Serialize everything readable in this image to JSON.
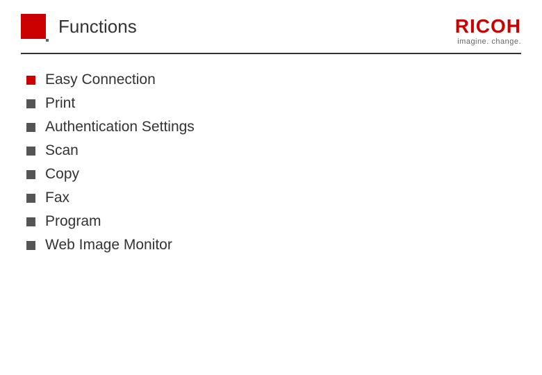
{
  "header": {
    "title": "Functions",
    "logo_text": "RICOH",
    "tagline": "imagine. change."
  },
  "functions": {
    "items": [
      {
        "label": "Easy Connection",
        "bullet_color": "#cc0000"
      },
      {
        "label": "Print",
        "bullet_color": "#555555"
      },
      {
        "label": "Authentication Settings",
        "bullet_color": "#555555"
      },
      {
        "label": "Scan",
        "bullet_color": "#555555"
      },
      {
        "label": "Copy",
        "bullet_color": "#555555"
      },
      {
        "label": "Fax",
        "bullet_color": "#555555"
      },
      {
        "label": "Program",
        "bullet_color": "#555555"
      },
      {
        "label": "Web Image Monitor",
        "bullet_color": "#555555"
      }
    ]
  },
  "style": {
    "accent_color": "#cc0000",
    "text_color": "#333333",
    "bullet_gray": "#555555",
    "background": "#ffffff",
    "title_fontsize": 26,
    "item_fontsize": 21,
    "logo_fontsize": 28,
    "tagline_fontsize": 11
  }
}
